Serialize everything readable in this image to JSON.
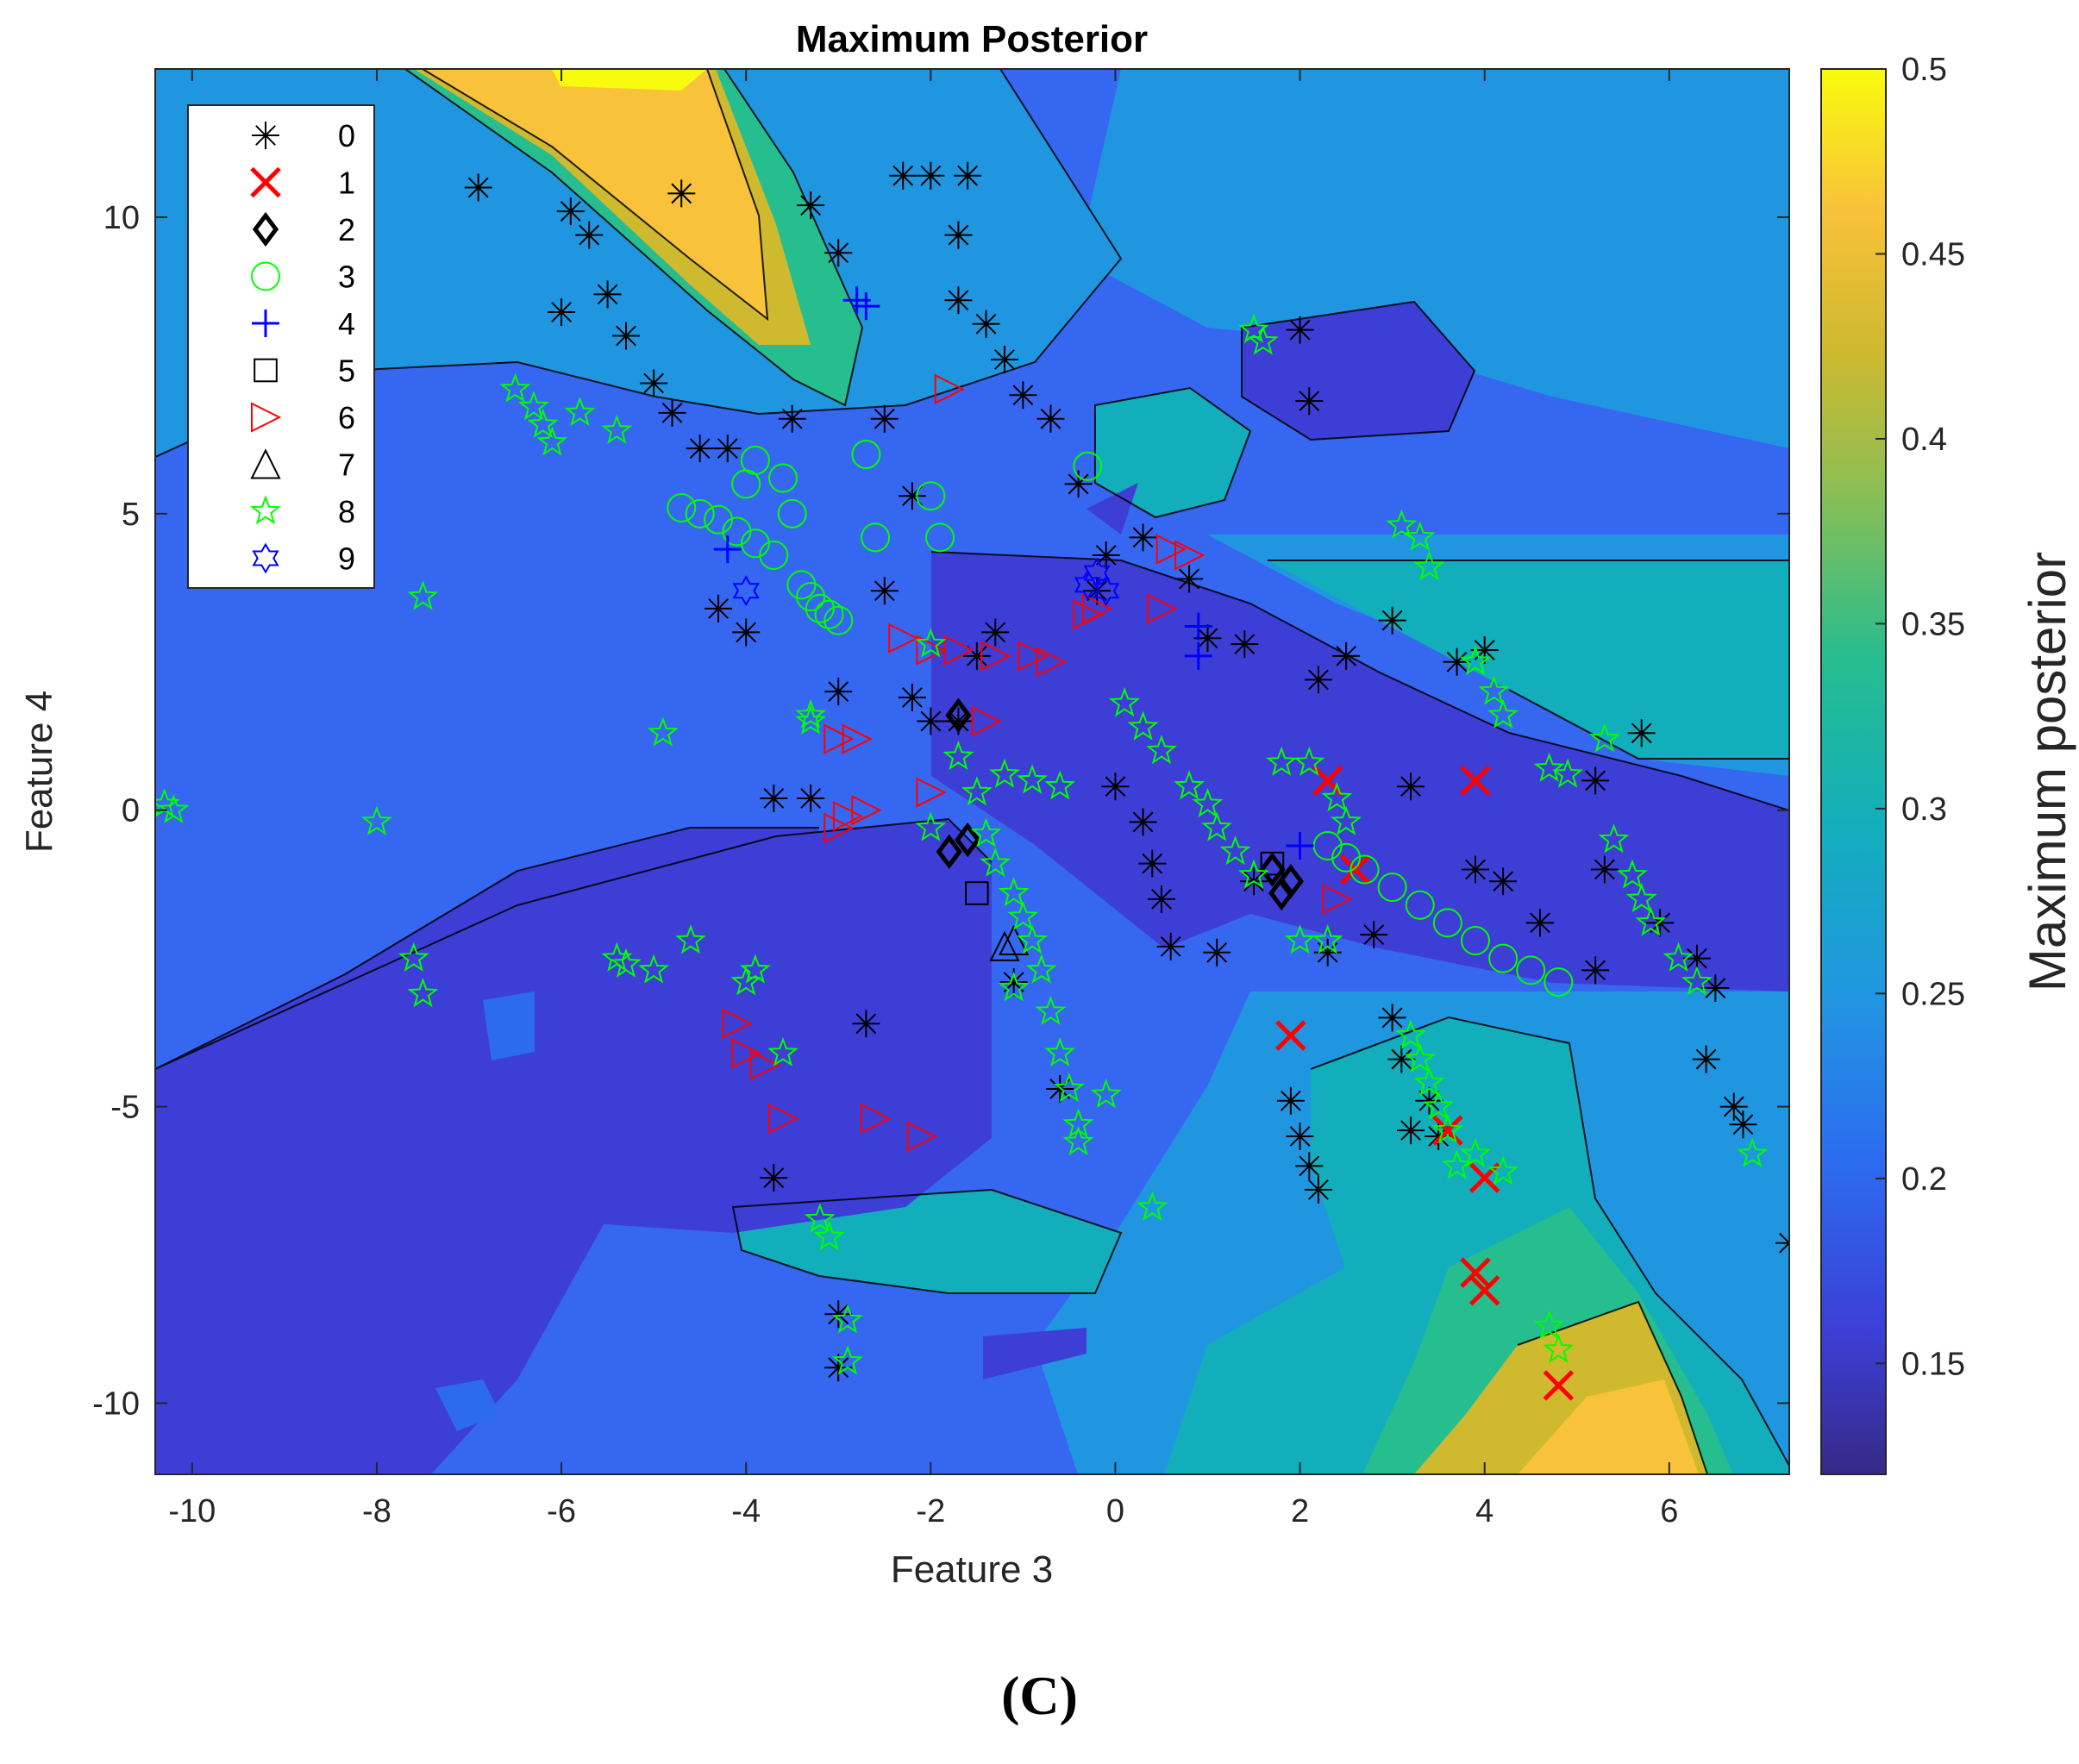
{
  "chart_data": {
    "type": "scatter",
    "title": "Maximum Posterior",
    "xlabel": "Feature 3",
    "ylabel": "Feature 4",
    "xlim": [
      -10.4,
      7.3
    ],
    "ylim": [
      -11.2,
      12.5
    ],
    "xticks": [
      -10,
      -8,
      -6,
      -4,
      -2,
      0,
      2,
      4,
      6
    ],
    "yticks": [
      -10,
      -5,
      0,
      5,
      10
    ],
    "colorbar": {
      "label": "Maximum posterior",
      "range": [
        0.12,
        0.5
      ],
      "ticks": [
        0.15,
        0.2,
        0.25,
        0.3,
        0.35,
        0.4,
        0.45,
        0.5
      ],
      "colormap": "parula"
    },
    "background": "filled contour of maximum posterior",
    "legend_position": "top-left",
    "series": [
      {
        "name": "0",
        "marker": "asterisk",
        "color": "#000000",
        "points": [
          [
            -6.9,
            10.5
          ],
          [
            -5.9,
            10.1
          ],
          [
            -5.7,
            9.7
          ],
          [
            -4.7,
            10.4
          ],
          [
            -3.3,
            10.2
          ],
          [
            -3.0,
            9.4
          ],
          [
            -2.3,
            10.7
          ],
          [
            -2.0,
            10.7
          ],
          [
            -1.6,
            10.7
          ],
          [
            -1.7,
            9.7
          ],
          [
            -1.7,
            8.6
          ],
          [
            -1.4,
            8.2
          ],
          [
            -1.2,
            7.6
          ],
          [
            -1.0,
            7.0
          ],
          [
            -0.7,
            6.6
          ],
          [
            -2.5,
            6.6
          ],
          [
            -6.0,
            8.4
          ],
          [
            -5.5,
            8.7
          ],
          [
            -5.3,
            8.0
          ],
          [
            -5.0,
            7.2
          ],
          [
            -4.8,
            6.7
          ],
          [
            -4.5,
            6.1
          ],
          [
            -4.2,
            6.1
          ],
          [
            -3.5,
            6.6
          ],
          [
            -0.4,
            5.5
          ],
          [
            -0.1,
            4.3
          ],
          [
            0.3,
            4.6
          ],
          [
            -2.2,
            5.3
          ],
          [
            -2.5,
            3.7
          ],
          [
            -1.3,
            3.0
          ],
          [
            -1.5,
            2.6
          ],
          [
            -3.0,
            2.0
          ],
          [
            -4.3,
            3.4
          ],
          [
            -4.0,
            3.0
          ],
          [
            -2.2,
            1.9
          ],
          [
            -2.0,
            1.5
          ],
          [
            -1.7,
            1.5
          ],
          [
            -3.7,
            0.2
          ],
          [
            -3.3,
            0.2
          ],
          [
            0.0,
            0.4
          ],
          [
            0.3,
            -0.2
          ],
          [
            0.4,
            -0.9
          ],
          [
            0.5,
            -1.5
          ],
          [
            0.6,
            -2.3
          ],
          [
            1.9,
            -4.9
          ],
          [
            2.0,
            -5.5
          ],
          [
            2.1,
            -6.0
          ],
          [
            2.2,
            -6.4
          ],
          [
            -2.7,
            -3.6
          ],
          [
            -1.1,
            -2.9
          ],
          [
            -3.7,
            -6.2
          ],
          [
            -3.0,
            -8.5
          ],
          [
            -3.0,
            -9.4
          ],
          [
            -0.6,
            -4.7
          ],
          [
            2.2,
            2.2
          ],
          [
            2.5,
            2.6
          ],
          [
            3.0,
            3.2
          ],
          [
            3.7,
            2.5
          ],
          [
            4.0,
            2.7
          ],
          [
            3.2,
            0.4
          ],
          [
            3.9,
            -1.0
          ],
          [
            4.2,
            -1.2
          ],
          [
            4.6,
            -1.9
          ],
          [
            5.2,
            0.5
          ],
          [
            5.7,
            1.3
          ],
          [
            5.3,
            -1.0
          ],
          [
            5.9,
            -1.9
          ],
          [
            6.3,
            -2.5
          ],
          [
            6.5,
            -3.0
          ],
          [
            6.4,
            -4.2
          ],
          [
            6.7,
            -5.0
          ],
          [
            6.8,
            -5.3
          ],
          [
            7.3,
            -7.3
          ],
          [
            3.0,
            -3.5
          ],
          [
            3.1,
            -4.2
          ],
          [
            3.2,
            -5.4
          ],
          [
            3.4,
            -4.9
          ],
          [
            3.5,
            -5.5
          ],
          [
            2.3,
            -2.4
          ],
          [
            2.8,
            -2.1
          ],
          [
            5.2,
            -2.7
          ],
          [
            2.0,
            8.1
          ],
          [
            2.1,
            6.9
          ],
          [
            0.8,
            3.9
          ],
          [
            1.0,
            2.9
          ],
          [
            1.4,
            2.8
          ],
          [
            -0.2,
            3.7
          ],
          [
            1.1,
            -2.4
          ],
          [
            1.5,
            -1.2
          ]
        ]
      },
      {
        "name": "1",
        "marker": "x",
        "color": "#ff0000",
        "points": [
          [
            2.3,
            0.5
          ],
          [
            3.9,
            0.5
          ],
          [
            2.6,
            -1.0
          ],
          [
            1.9,
            -3.8
          ],
          [
            3.6,
            -5.4
          ],
          [
            4.0,
            -6.2
          ],
          [
            3.9,
            -7.8
          ],
          [
            4.0,
            -8.1
          ],
          [
            4.8,
            -9.7
          ]
        ]
      },
      {
        "name": "2",
        "marker": "diamond",
        "color": "#000000",
        "points": [
          [
            1.7,
            -1.0
          ],
          [
            1.9,
            -1.2
          ],
          [
            1.8,
            -1.4
          ],
          [
            -1.8,
            -0.7
          ],
          [
            -1.6,
            -0.5
          ],
          [
            -1.7,
            1.6
          ]
        ]
      },
      {
        "name": "3",
        "marker": "circle",
        "color": "#00ff00",
        "points": [
          [
            -4.7,
            5.1
          ],
          [
            -4.5,
            5.0
          ],
          [
            -4.3,
            4.9
          ],
          [
            -4.1,
            4.7
          ],
          [
            -3.9,
            4.5
          ],
          [
            -3.7,
            4.3
          ],
          [
            -3.6,
            5.6
          ],
          [
            -3.9,
            5.9
          ],
          [
            -4.0,
            5.5
          ],
          [
            -3.5,
            5.0
          ],
          [
            -3.4,
            3.8
          ],
          [
            -3.3,
            3.6
          ],
          [
            -3.2,
            3.4
          ],
          [
            -3.1,
            3.3
          ],
          [
            -3.0,
            3.2
          ],
          [
            -2.6,
            4.6
          ],
          [
            -2.7,
            6.0
          ],
          [
            -0.3,
            5.8
          ],
          [
            -2.0,
            5.3
          ],
          [
            -1.9,
            4.6
          ],
          [
            2.3,
            -0.6
          ],
          [
            2.5,
            -0.8
          ],
          [
            2.7,
            -1.0
          ],
          [
            3.0,
            -1.3
          ],
          [
            3.3,
            -1.6
          ],
          [
            3.6,
            -1.9
          ],
          [
            3.9,
            -2.2
          ],
          [
            4.2,
            -2.5
          ],
          [
            4.5,
            -2.7
          ],
          [
            4.8,
            -2.9
          ]
        ]
      },
      {
        "name": "4",
        "marker": "plus",
        "color": "#0000ff",
        "points": [
          [
            -2.8,
            8.6
          ],
          [
            -2.7,
            8.5
          ],
          [
            -4.2,
            4.4
          ],
          [
            2.0,
            -0.6
          ],
          [
            0.9,
            3.1
          ],
          [
            0.9,
            2.6
          ]
        ]
      },
      {
        "name": "5",
        "marker": "square",
        "color": "#000000",
        "points": [
          [
            -1.5,
            -1.4
          ],
          [
            1.7,
            -0.9
          ]
        ]
      },
      {
        "name": "6",
        "marker": "triangle-right",
        "color": "#ff0000",
        "points": [
          [
            -1.8,
            7.1
          ],
          [
            0.6,
            4.4
          ],
          [
            0.8,
            4.3
          ],
          [
            0.5,
            3.4
          ],
          [
            -2.3,
            2.9
          ],
          [
            -2.0,
            2.7
          ],
          [
            -1.7,
            2.7
          ],
          [
            -1.3,
            2.6
          ],
          [
            -0.9,
            2.6
          ],
          [
            -0.7,
            2.5
          ],
          [
            -0.3,
            3.3
          ],
          [
            -3.0,
            1.2
          ],
          [
            -2.8,
            1.2
          ],
          [
            -1.4,
            1.5
          ],
          [
            -3.0,
            -0.3
          ],
          [
            -2.9,
            -0.1
          ],
          [
            -2.7,
            0.0
          ],
          [
            -2.0,
            0.3
          ],
          [
            2.4,
            -1.5
          ],
          [
            -4.1,
            -3.6
          ],
          [
            -4.0,
            -4.1
          ],
          [
            -3.8,
            -4.3
          ],
          [
            -3.6,
            -5.2
          ],
          [
            -2.6,
            -5.2
          ],
          [
            -2.1,
            -5.5
          ],
          [
            -0.2,
            3.4
          ]
        ]
      },
      {
        "name": "7",
        "marker": "triangle-up",
        "color": "#000000",
        "points": [
          [
            -1.1,
            -2.2
          ],
          [
            -1.2,
            -2.3
          ]
        ]
      },
      {
        "name": "8",
        "marker": "pentagram",
        "color": "#00ff00",
        "points": [
          [
            -6.5,
            7.1
          ],
          [
            -6.3,
            6.8
          ],
          [
            -6.2,
            6.5
          ],
          [
            -6.1,
            6.2
          ],
          [
            -5.8,
            6.7
          ],
          [
            -5.4,
            6.4
          ],
          [
            -7.5,
            3.6
          ],
          [
            -10.3,
            0.1
          ],
          [
            -10.2,
            0.0
          ],
          [
            -8.0,
            -0.2
          ],
          [
            -7.6,
            -2.5
          ],
          [
            -7.5,
            -3.1
          ],
          [
            -5.4,
            -2.5
          ],
          [
            -5.3,
            -2.6
          ],
          [
            -5.0,
            -2.7
          ],
          [
            -4.6,
            -2.2
          ],
          [
            -4.0,
            -2.9
          ],
          [
            -3.9,
            -2.7
          ],
          [
            -3.6,
            -4.1
          ],
          [
            -3.2,
            -6.9
          ],
          [
            -3.1,
            -7.2
          ],
          [
            -2.9,
            -8.6
          ],
          [
            -2.9,
            -9.3
          ],
          [
            -4.9,
            1.3
          ],
          [
            -3.3,
            1.5
          ],
          [
            -3.3,
            1.6
          ],
          [
            -2.0,
            2.8
          ],
          [
            -1.7,
            0.9
          ],
          [
            -1.5,
            0.3
          ],
          [
            -1.4,
            -0.4
          ],
          [
            -1.3,
            -0.9
          ],
          [
            -1.1,
            -1.4
          ],
          [
            -1.0,
            -1.8
          ],
          [
            -0.9,
            -2.2
          ],
          [
            -0.8,
            -2.7
          ],
          [
            -0.7,
            -3.4
          ],
          [
            -0.6,
            -4.1
          ],
          [
            -0.5,
            -4.7
          ],
          [
            -0.4,
            -5.3
          ],
          [
            -0.4,
            -5.6
          ],
          [
            -1.2,
            0.6
          ],
          [
            -0.9,
            0.5
          ],
          [
            -0.6,
            0.4
          ],
          [
            0.1,
            1.8
          ],
          [
            0.3,
            1.4
          ],
          [
            0.5,
            1.0
          ],
          [
            0.8,
            0.4
          ],
          [
            1.0,
            0.1
          ],
          [
            1.1,
            -0.3
          ],
          [
            1.3,
            -0.7
          ],
          [
            1.5,
            -1.1
          ],
          [
            1.8,
            0.8
          ],
          [
            2.1,
            0.8
          ],
          [
            2.4,
            0.2
          ],
          [
            2.5,
            -0.2
          ],
          [
            2.0,
            -2.2
          ],
          [
            2.3,
            -2.2
          ],
          [
            0.4,
            -6.7
          ],
          [
            1.6,
            7.9
          ],
          [
            1.5,
            8.1
          ],
          [
            3.1,
            4.8
          ],
          [
            3.3,
            4.6
          ],
          [
            3.4,
            4.1
          ],
          [
            3.2,
            -3.8
          ],
          [
            3.3,
            -4.2
          ],
          [
            3.4,
            -4.6
          ],
          [
            3.5,
            -5.0
          ],
          [
            3.6,
            -5.4
          ],
          [
            3.9,
            -5.8
          ],
          [
            4.2,
            -6.1
          ],
          [
            3.7,
            -6.0
          ],
          [
            3.9,
            2.5
          ],
          [
            4.1,
            2.0
          ],
          [
            4.2,
            1.6
          ],
          [
            5.3,
            1.2
          ],
          [
            4.7,
            0.7
          ],
          [
            4.9,
            0.6
          ],
          [
            5.4,
            -0.5
          ],
          [
            5.6,
            -1.1
          ],
          [
            5.7,
            -1.5
          ],
          [
            5.8,
            -1.9
          ],
          [
            6.1,
            -2.5
          ],
          [
            6.3,
            -2.9
          ],
          [
            6.9,
            -5.8
          ],
          [
            4.7,
            -8.7
          ],
          [
            4.8,
            -9.1
          ],
          [
            -2.0,
            -0.3
          ],
          [
            -1.1,
            -3.0
          ],
          [
            -0.1,
            -4.8
          ]
        ]
      },
      {
        "name": "9",
        "marker": "hexagram",
        "color": "#0000ff",
        "points": [
          [
            -4.0,
            3.7
          ],
          [
            -0.3,
            3.8
          ],
          [
            -0.2,
            4.0
          ],
          [
            -0.1,
            3.7
          ]
        ]
      }
    ]
  }
}
